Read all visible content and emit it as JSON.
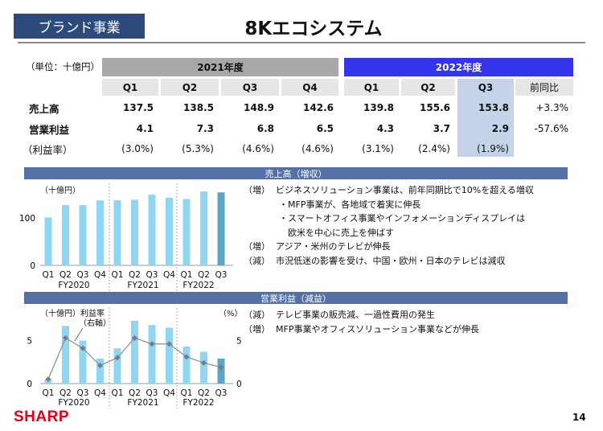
{
  "header": {
    "badge": "ブランド事業",
    "title": "8Kエコシステム"
  },
  "table": {
    "unit": "（単位：十億円）",
    "fy2021": "2021年度",
    "fy2022": "2022年度",
    "quarters": [
      "Q1",
      "Q2",
      "Q3",
      "Q4",
      "Q1",
      "Q2",
      "Q3"
    ],
    "yoy_header": "前同比",
    "rows": [
      {
        "label": "売上高",
        "values": [
          "137.5",
          "138.5",
          "148.9",
          "142.6",
          "139.8",
          "155.6",
          "153.8"
        ],
        "yoy": "+3.3%"
      },
      {
        "label": "営業利益",
        "values": [
          "4.1",
          "7.3",
          "6.8",
          "6.5",
          "4.3",
          "3.7",
          "2.9"
        ],
        "yoy": "-57.6%"
      },
      {
        "label": "（利益率）",
        "values": [
          "(3.0%)",
          "(5.3%)",
          "(4.6%)",
          "(4.6%)",
          "(3.1%)",
          "(2.4%)",
          "(1.9%)"
        ],
        "yoy": ""
      }
    ]
  },
  "sales_section": {
    "title": "売上高（増収）",
    "notes": [
      {
        "tag": "（増）",
        "text": "ビジネスソリューション事業は、前年同期比で10%を超える増収"
      },
      {
        "tag": "",
        "text": "・MFP事業が、各地域で着実に伸長"
      },
      {
        "tag": "",
        "text": "・スマートオフィス事業やインフォメーションディスプレイは"
      },
      {
        "tag": "",
        "text": "　欧米を中心に売上を伸ばす"
      },
      {
        "tag": "（増）",
        "text": "アジア・米州のテレビが伸長"
      },
      {
        "tag": "（減）",
        "text": "市況低迷の影響を受け、中国・欧州・日本のテレビは減収"
      }
    ]
  },
  "profit_section": {
    "title": "営業利益（減益）",
    "notes": [
      {
        "tag": "（減）",
        "text": "テレビ事業の販売減、一過性費用の発生"
      },
      {
        "tag": "（増）",
        "text": "MFP事業やオフィスソリューション事業などが伸長"
      }
    ]
  },
  "chart_data": [
    {
      "type": "bar",
      "title": "売上高",
      "ylabel": "（十億円）",
      "categories": [
        "Q1",
        "Q2",
        "Q3",
        "Q4",
        "Q1",
        "Q2",
        "Q3",
        "Q4",
        "Q1",
        "Q2",
        "Q3"
      ],
      "groups": [
        "FY2020",
        "FY2021",
        "FY2022"
      ],
      "values": [
        101,
        127,
        127,
        137,
        137.5,
        138.5,
        148.9,
        142.6,
        139.8,
        155.6,
        153.8
      ],
      "yticks": [
        "0",
        "100"
      ],
      "ylim": [
        0,
        170
      ],
      "highlight_last": true
    },
    {
      "type": "bar+line",
      "title": "営業利益",
      "ylabel": "（十億円）",
      "y2label": "（%）",
      "line_label": "利益率",
      "line_label2": "（右軸）",
      "categories": [
        "Q1",
        "Q2",
        "Q3",
        "Q4",
        "Q1",
        "Q2",
        "Q3",
        "Q4",
        "Q1",
        "Q2",
        "Q3"
      ],
      "groups": [
        "FY2020",
        "FY2021",
        "FY2022"
      ],
      "series": [
        {
          "name": "営業利益",
          "values": [
            0.5,
            6.7,
            5.0,
            2.9,
            4.1,
            7.3,
            6.8,
            6.5,
            4.3,
            3.7,
            2.9
          ]
        },
        {
          "name": "利益率",
          "values": [
            0.5,
            5.3,
            4.1,
            2.1,
            3.0,
            5.3,
            4.6,
            4.6,
            3.1,
            2.4,
            1.9
          ]
        }
      ],
      "yticks": [
        "0",
        "5"
      ],
      "y2ticks": [
        "0",
        "5"
      ],
      "ylim": [
        0,
        8
      ]
    }
  ],
  "colors": {
    "bar": "#8fd6f2",
    "bar_highlight": "#5aa6c4",
    "line": "#8c8c8c",
    "marker": "#7a7a8a",
    "brand": "#e2001a"
  },
  "footer": {
    "logo": "SHARP",
    "page": "14"
  }
}
